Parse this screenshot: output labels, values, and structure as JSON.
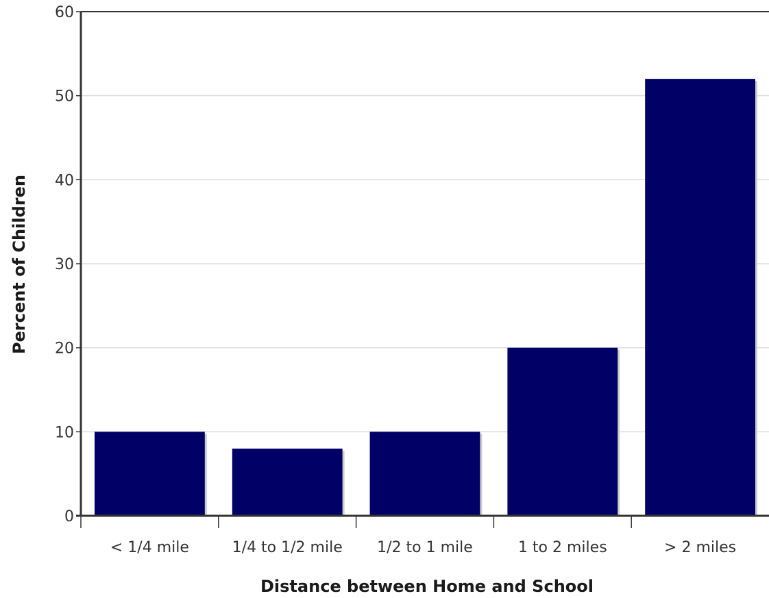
{
  "chart_data": {
    "type": "bar",
    "categories": [
      "< 1/4 mile",
      "1/4 to 1/2 mile",
      "1/2 to 1 mile",
      "1 to 2 miles",
      "> 2 miles"
    ],
    "values": [
      10,
      8,
      10,
      20,
      52
    ],
    "xlabel": "Distance between Home and School",
    "ylabel": "Percent of Children",
    "ylim": [
      0,
      60
    ],
    "yticks": [
      0,
      10,
      20,
      30,
      40,
      50,
      60
    ],
    "grid": true,
    "bar_color": "#000066",
    "bar_shadow_color": "#cccccc",
    "grid_color": "#dddddd",
    "axis_color": "#333333"
  }
}
